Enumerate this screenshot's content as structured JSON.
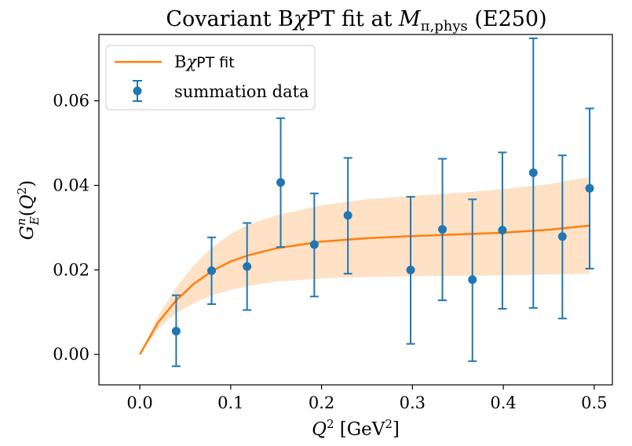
{
  "chart_data": {
    "type": "scatter",
    "title": "Covariant BχPT fit at M_π,phys (E250)",
    "title_parts": {
      "prefix": "Covariant B",
      "chi": "χ",
      "middle": "PT fit at ",
      "mvar": "M",
      "msub": "π,phys",
      "suffix": " (E250)"
    },
    "xlabel": "Q² [GeV²]",
    "xlabel_parts": {
      "var": "Q",
      "sup": "2",
      "unit_open": " [GeV",
      "unit_sup": "2",
      "unit_close": "]"
    },
    "ylabel": "G_E^n(Q²)",
    "ylabel_parts": {
      "var": "G",
      "sub": "E",
      "sup": "n",
      "open": "(",
      "arg": "Q",
      "arg_sup": "2",
      "close": ")"
    },
    "xlim": [
      -0.045,
      0.52
    ],
    "ylim": [
      -0.0072,
      0.0757
    ],
    "x_ticks": [
      0.0,
      0.1,
      0.2,
      0.3,
      0.4,
      0.5
    ],
    "x_tick_labels": [
      "0.0",
      "0.1",
      "0.2",
      "0.3",
      "0.4",
      "0.5"
    ],
    "y_ticks": [
      0.0,
      0.02,
      0.04,
      0.06
    ],
    "y_tick_labels": [
      "0.00",
      "0.02",
      "0.04",
      "0.06"
    ],
    "grid": false,
    "legend_position": "top-left",
    "legend": {
      "fit_label_prefix": "B",
      "fit_label_chi": "χ",
      "fit_label_suffix": "PT fit",
      "data_label": "summation data"
    },
    "series": [
      {
        "name": "summation data",
        "kind": "errorbar",
        "color": "#1f77b4",
        "x": [
          0.04,
          0.079,
          0.118,
          0.155,
          0.192,
          0.229,
          0.298,
          0.333,
          0.366,
          0.399,
          0.433,
          0.465,
          0.495
        ],
        "y": [
          0.0055,
          0.0198,
          0.0208,
          0.0407,
          0.026,
          0.0329,
          0.02,
          0.0296,
          0.0177,
          0.0294,
          0.043,
          0.0279,
          0.0393
        ],
        "err_low": [
          0.0083,
          0.0079,
          0.0103,
          0.0153,
          0.0123,
          0.0138,
          0.0175,
          0.0168,
          0.0193,
          0.0186,
          0.032,
          0.0194,
          0.019
        ],
        "err_high": [
          0.0085,
          0.0079,
          0.0103,
          0.0152,
          0.0121,
          0.0136,
          0.0173,
          0.0167,
          0.019,
          0.0184,
          0.0318,
          0.0192,
          0.0189
        ]
      },
      {
        "name": "BχPT fit",
        "kind": "line_band",
        "color": "#ff7f0e",
        "band_color": "#ffd9b8",
        "x": [
          0.0,
          0.02,
          0.04,
          0.06,
          0.08,
          0.1,
          0.12,
          0.15,
          0.2,
          0.25,
          0.3,
          0.35,
          0.4,
          0.45,
          0.495
        ],
        "y": [
          0.0,
          0.0075,
          0.0128,
          0.0168,
          0.0198,
          0.022,
          0.0235,
          0.0251,
          0.0267,
          0.0275,
          0.028,
          0.0284,
          0.0288,
          0.0295,
          0.0305
        ],
        "lower": [
          0.0,
          0.006,
          0.0097,
          0.0122,
          0.014,
          0.0153,
          0.0162,
          0.0172,
          0.018,
          0.0183,
          0.0185,
          0.0186,
          0.0187,
          0.0189,
          0.0191
        ],
        "upper": [
          0.0,
          0.009,
          0.0158,
          0.0212,
          0.0254,
          0.0285,
          0.0307,
          0.0329,
          0.0353,
          0.0367,
          0.0375,
          0.0382,
          0.0391,
          0.0403,
          0.042
        ]
      }
    ]
  }
}
